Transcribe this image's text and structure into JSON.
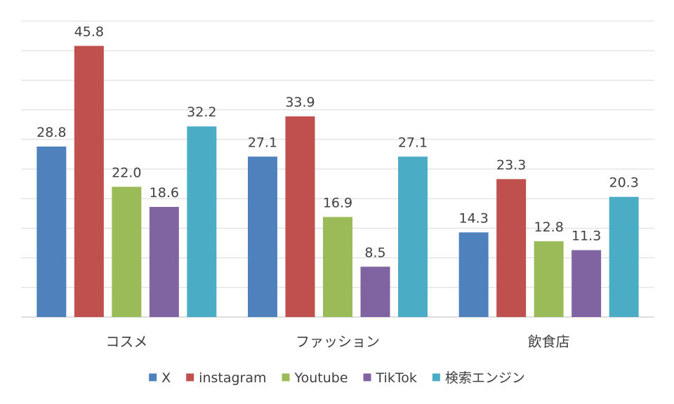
{
  "chart_data": {
    "type": "bar",
    "categories": [
      "コスメ",
      "ファッション",
      "飲食店"
    ],
    "series": [
      {
        "name": "X",
        "color": "#4f81bd",
        "values": [
          28.8,
          27.1,
          14.3
        ]
      },
      {
        "name": "instagram",
        "color": "#c0504d",
        "values": [
          45.8,
          33.9,
          23.3
        ]
      },
      {
        "name": "Youtube",
        "color": "#9bbb59",
        "values": [
          22.0,
          16.9,
          12.8
        ]
      },
      {
        "name": "TikTok",
        "color": "#8064a2",
        "values": [
          18.6,
          8.5,
          11.3
        ]
      },
      {
        "name": "検索エンジン",
        "color": "#4bacc6",
        "values": [
          32.2,
          27.1,
          20.3
        ]
      }
    ],
    "value_labels": [
      [
        "28.8",
        "27.1",
        "14.3"
      ],
      [
        "45.8",
        "33.9",
        "23.3"
      ],
      [
        "22.0",
        "16.9",
        "12.8"
      ],
      [
        "18.6",
        "8.5",
        "11.3"
      ],
      [
        "32.2",
        "27.1",
        "20.3"
      ]
    ],
    "ylim": [
      0,
      50
    ],
    "grid": true,
    "legend": "bottom",
    "title": "",
    "xlabel": "",
    "ylabel": ""
  }
}
